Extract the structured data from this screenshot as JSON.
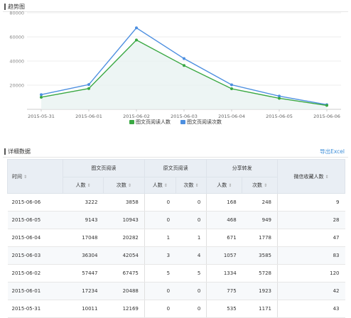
{
  "trend": {
    "title": "趋势图"
  },
  "chart_data": {
    "type": "line",
    "categories": [
      "2015-05-31",
      "2015-06-01",
      "2015-06-02",
      "2015-06-03",
      "2015-06-04",
      "2015-06-05",
      "2015-06-06"
    ],
    "y_ticks": [
      "20000",
      "40000",
      "60000",
      "80000"
    ],
    "ylim": [
      0,
      80000
    ],
    "grid": true,
    "legend_placement": "bottom-center",
    "series": [
      {
        "name": "图文页阅读人数",
        "color": "#3aa843",
        "values": [
          10011,
          17234,
          57447,
          36304,
          17048,
          9143,
          3222
        ]
      },
      {
        "name": "图文页阅读次数",
        "color": "#4d8fe0",
        "values": [
          12169,
          20488,
          67475,
          42054,
          20282,
          10943,
          3858
        ]
      }
    ]
  },
  "details": {
    "title": "详细数据",
    "export_label": "导出Excel",
    "headers": {
      "time": "时间",
      "group1": "图文页阅读",
      "group2": "原文页阅读",
      "group3": "分享转发",
      "fav": "微信收藏人数",
      "people": "人数",
      "count": "次数",
      "sort_glyph": "⇕"
    },
    "rows": [
      [
        "2015-06-06",
        "3222",
        "3858",
        "0",
        "0",
        "168",
        "248",
        "9"
      ],
      [
        "2015-06-05",
        "9143",
        "10943",
        "0",
        "0",
        "468",
        "949",
        "28"
      ],
      [
        "2015-06-04",
        "17048",
        "20282",
        "1",
        "1",
        "671",
        "1778",
        "47"
      ],
      [
        "2015-06-03",
        "36304",
        "42054",
        "3",
        "4",
        "1057",
        "3585",
        "83"
      ],
      [
        "2015-06-02",
        "57447",
        "67475",
        "5",
        "5",
        "1334",
        "5728",
        "120"
      ],
      [
        "2015-06-01",
        "17234",
        "20488",
        "0",
        "0",
        "775",
        "1923",
        "42"
      ],
      [
        "2015-05-31",
        "10011",
        "12169",
        "0",
        "0",
        "535",
        "1171",
        "43"
      ]
    ]
  }
}
